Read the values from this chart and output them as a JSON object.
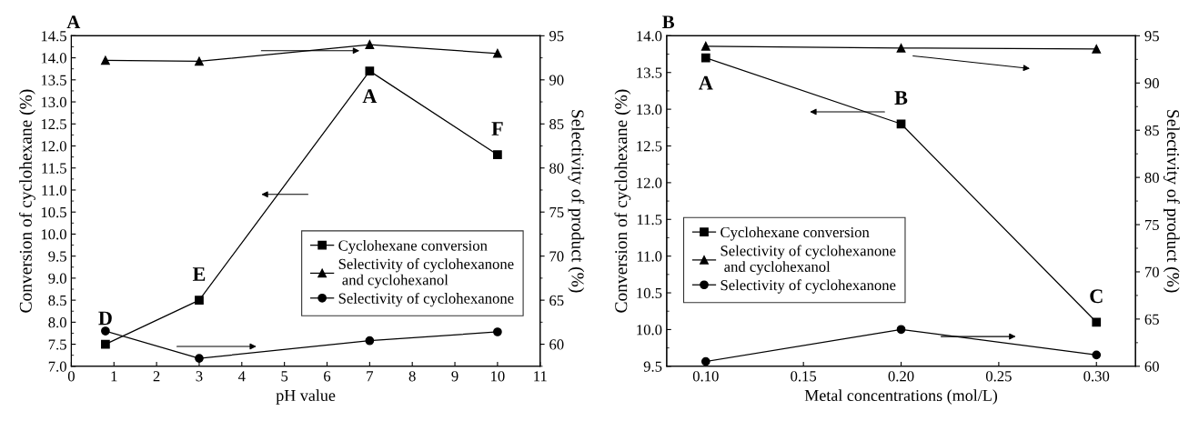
{
  "chart_data": [
    {
      "type": "line",
      "title": "A",
      "xlabel": "pH value",
      "ylabel": "Conversion of cyclohexane (%)",
      "y2label": "Selectivity of product (%)",
      "x": [
        0.8,
        3,
        7,
        10
      ],
      "series": [
        {
          "name": "Cyclohexane conversion",
          "color": "#000000",
          "marker": "square",
          "values": [
            7.5,
            8.5,
            13.7,
            11.8
          ]
        },
        {
          "name": "Selectivity of cyclohexanone\n and cyclohexanol",
          "color": "#000000",
          "marker": "triangle",
          "axis": "y2",
          "values": [
            92.2,
            92.1,
            94.0,
            93.0
          ]
        },
        {
          "name": "Selectivity of cyclohexanone",
          "color": "#000000",
          "marker": "circle",
          "axis": "y2",
          "values": [
            61.5,
            58.4,
            60.4,
            61.4
          ]
        }
      ],
      "xlim": [
        0,
        11
      ],
      "xticks": [
        0,
        1,
        2,
        3,
        4,
        5,
        6,
        7,
        8,
        9,
        10,
        11
      ],
      "ylim": [
        7.0,
        14.5
      ],
      "yticks": [
        {
          "value": 7.0,
          "label": "7.0"
        },
        {
          "value": 7.5,
          "label": "7.5"
        },
        {
          "value": 8.0,
          "label": "8.0"
        },
        {
          "value": 8.5,
          "label": "8.5"
        },
        {
          "value": 9.0,
          "label": "9.0"
        },
        {
          "value": 9.5,
          "label": "9.5"
        },
        {
          "value": 10.0,
          "label": "10.0"
        },
        {
          "value": 10.5,
          "label": "10.5"
        },
        {
          "value": 11.0,
          "label": "11.0"
        },
        {
          "value": 11.5,
          "label": "11.5"
        },
        {
          "value": 12.0,
          "label": "12.0"
        },
        {
          "value": 12.5,
          "label": "12.5"
        },
        {
          "value": 13.0,
          "label": "13.0"
        },
        {
          "value": 13.5,
          "label": "13.5"
        },
        {
          "value": 14.0,
          "label": "14.0"
        },
        {
          "value": 14.5,
          "label": "14.5"
        }
      ],
      "y2lim": [
        57.5,
        95
      ],
      "y2ticks": [
        60,
        65,
        70,
        75,
        80,
        85,
        90,
        95
      ],
      "annotations": [
        {
          "text": "D",
          "x": 0.8,
          "y": 7.5
        },
        {
          "text": "E",
          "x": 3,
          "y": 8.5
        },
        {
          "text": "A",
          "x": 7,
          "y": 13.7
        },
        {
          "text": "F",
          "x": 10,
          "y": 11.8
        }
      ],
      "legend": "lower right",
      "grid": false,
      "line_style": "solid"
    },
    {
      "type": "line",
      "title": "B",
      "xlabel": "Metal concentrations (mol/L)",
      "ylabel": "Conversion of cyclohexane (%)",
      "y2label": "Selectivity of product (%)",
      "x": [
        0.1,
        0.2,
        0.3
      ],
      "series": [
        {
          "name": "Cyclohexane conversion",
          "color": "#000000",
          "marker": "square",
          "values": [
            13.7,
            12.8,
            10.1
          ]
        },
        {
          "name": "Selectivity of cyclohexanone\n and cyclohexanol",
          "color": "#000000",
          "marker": "triangle",
          "axis": "y2",
          "values": [
            93.9,
            93.7,
            93.6
          ]
        },
        {
          "name": "Selectivity of cyclohexanone",
          "color": "#000000",
          "marker": "circle",
          "axis": "y2",
          "values": [
            60.5,
            63.9,
            61.2
          ]
        }
      ],
      "xlim": [
        0.08,
        0.32
      ],
      "xticks": [
        {
          "value": 0.1,
          "label": "0.10"
        },
        {
          "value": 0.15,
          "label": "0.15"
        },
        {
          "value": 0.2,
          "label": "0.20"
        },
        {
          "value": 0.25,
          "label": "0.25"
        },
        {
          "value": 0.3,
          "label": "0.30"
        }
      ],
      "ylim": [
        9.5,
        14.0
      ],
      "yticks": [
        {
          "value": 9.5,
          "label": "9.5"
        },
        {
          "value": 10.0,
          "label": "10.0"
        },
        {
          "value": 10.5,
          "label": "10.5"
        },
        {
          "value": 11.0,
          "label": "11.0"
        },
        {
          "value": 11.5,
          "label": "11.5"
        },
        {
          "value": 12.0,
          "label": "12.0"
        },
        {
          "value": 12.5,
          "label": "12.5"
        },
        {
          "value": 13.0,
          "label": "13.0"
        },
        {
          "value": 13.5,
          "label": "13.5"
        },
        {
          "value": 14.0,
          "label": "14.0"
        }
      ],
      "y2lim": [
        60,
        95
      ],
      "y2ticks": [
        60,
        65,
        70,
        75,
        80,
        85,
        90,
        95
      ],
      "annotations": [
        {
          "text": "A",
          "x": 0.1,
          "y": 13.7
        },
        {
          "text": "B",
          "x": 0.2,
          "y": 12.8
        },
        {
          "text": "C",
          "x": 0.3,
          "y": 10.1
        }
      ],
      "legend": "lower left",
      "grid": false,
      "line_style": "solid"
    }
  ]
}
